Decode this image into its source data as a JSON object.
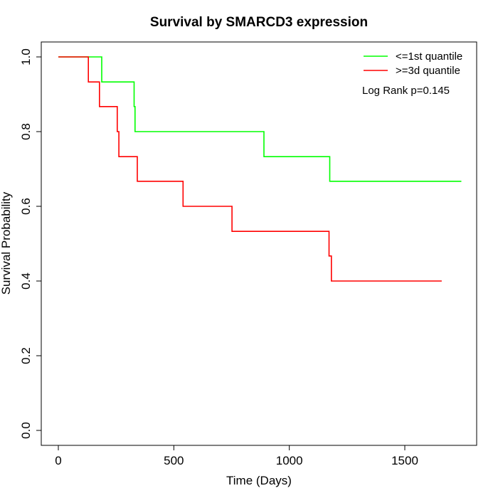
{
  "chart_data": {
    "type": "line",
    "step": true,
    "title": "Survival by SMARCD3 expression",
    "xlabel": "Time (Days)",
    "ylabel": "Survival Probability",
    "xlim": [
      0,
      1750
    ],
    "ylim": [
      0,
      1
    ],
    "xticks": [
      0,
      500,
      1000,
      1500
    ],
    "yticks": [
      0.0,
      0.2,
      0.4,
      0.6,
      0.8,
      1.0
    ],
    "xtick_labels": [
      "0",
      "500",
      "1000",
      "1500"
    ],
    "ytick_labels": [
      "0.0",
      "0.2",
      "0.4",
      "0.6",
      "0.8",
      "1.0"
    ],
    "grid": false,
    "legend_position": "top-right",
    "series": [
      {
        "name": "<=1st quantile",
        "color": "#00ff00",
        "points": [
          [
            0,
            1.0
          ],
          [
            188,
            1.0
          ],
          [
            188,
            0.933
          ],
          [
            328,
            0.933
          ],
          [
            328,
            0.867
          ],
          [
            332,
            0.867
          ],
          [
            332,
            0.8
          ],
          [
            890,
            0.8
          ],
          [
            890,
            0.733
          ],
          [
            1175,
            0.733
          ],
          [
            1175,
            0.667
          ],
          [
            1745,
            0.667
          ]
        ]
      },
      {
        "name": ">=3d quantile",
        "color": "#ff0000",
        "points": [
          [
            0,
            1.0
          ],
          [
            130,
            1.0
          ],
          [
            130,
            0.933
          ],
          [
            178,
            0.933
          ],
          [
            178,
            0.867
          ],
          [
            255,
            0.867
          ],
          [
            255,
            0.8
          ],
          [
            262,
            0.8
          ],
          [
            262,
            0.733
          ],
          [
            342,
            0.733
          ],
          [
            342,
            0.667
          ],
          [
            540,
            0.667
          ],
          [
            540,
            0.6
          ],
          [
            752,
            0.6
          ],
          [
            752,
            0.533
          ],
          [
            1172,
            0.533
          ],
          [
            1172,
            0.467
          ],
          [
            1182,
            0.467
          ],
          [
            1182,
            0.4
          ],
          [
            1660,
            0.4
          ]
        ]
      }
    ],
    "annotations": [
      "Log Rank p=0.145"
    ]
  }
}
